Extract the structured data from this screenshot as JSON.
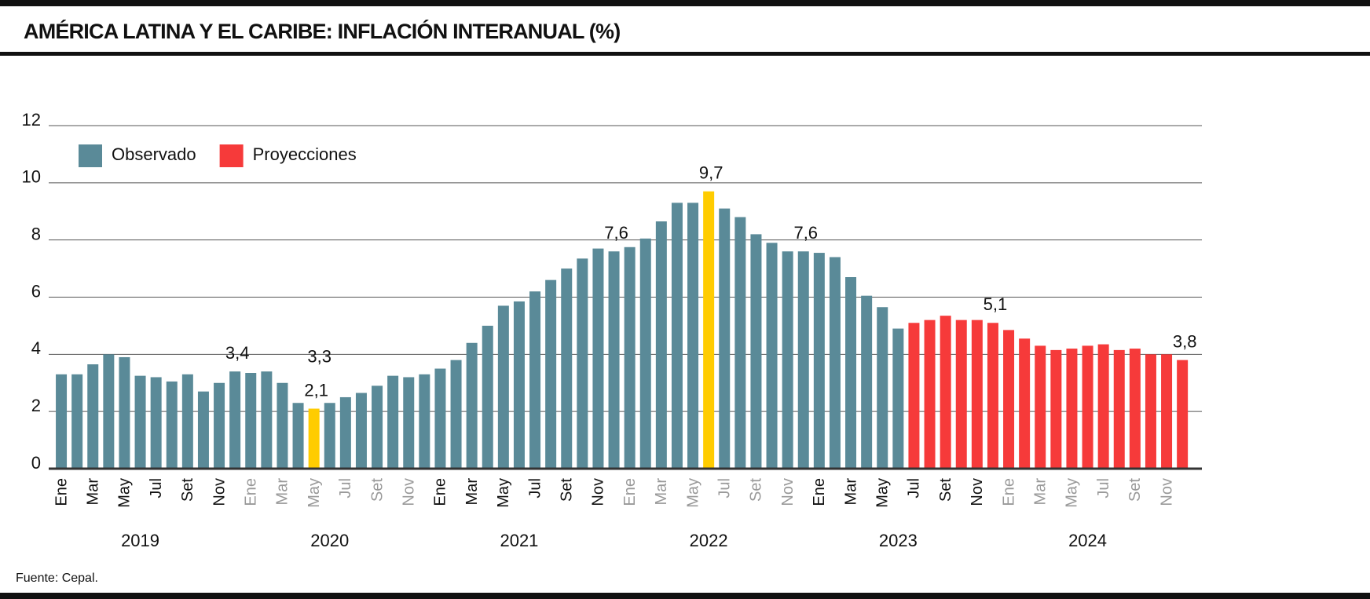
{
  "chart_data": {
    "type": "bar",
    "title": "AMÉRICA LATINA Y EL CARIBE: INFLACIÓN INTERANUAL (%)",
    "source": "Fuente: Cepal.",
    "categories": [
      "Ene",
      null,
      "Mar",
      null,
      "May",
      null,
      "Jul",
      null,
      "Set",
      null,
      "Nov",
      null,
      "Ene",
      null,
      "Mar",
      null,
      "May",
      null,
      "Jul",
      null,
      "Set",
      null,
      "Nov",
      null,
      "Ene",
      null,
      "Mar",
      null,
      "May",
      null,
      "Jul",
      null,
      "Set",
      null,
      "Nov",
      null,
      "Ene",
      null,
      "Mar",
      null,
      "May",
      null,
      "Jul",
      null,
      "Set",
      null,
      "Nov",
      null,
      "Ene",
      null,
      "Mar",
      null,
      "May",
      null,
      "Jul",
      null,
      "Set",
      null,
      "Nov",
      null,
      "Ene",
      null,
      "Mar",
      null,
      "May",
      null,
      "Jul",
      null,
      "Set",
      null,
      "Nov",
      null
    ],
    "years": [
      "2019",
      "2020",
      "2021",
      "2022",
      "2023",
      "2024"
    ],
    "series": [
      {
        "name": "Observado",
        "color": "#5a8a98",
        "values": [
          3.3,
          3.3,
          3.65,
          4.0,
          3.9,
          3.25,
          3.2,
          3.05,
          3.3,
          2.7,
          3.0,
          3.4,
          3.35,
          3.4,
          3.0,
          2.3,
          2.1,
          2.3,
          2.5,
          2.65,
          2.9,
          3.25,
          3.2,
          3.3,
          3.5,
          3.8,
          4.4,
          5.0,
          5.7,
          5.85,
          6.2,
          6.6,
          7.0,
          7.35,
          7.7,
          7.6,
          7.75,
          8.05,
          8.65,
          9.3,
          9.3,
          9.7,
          9.1,
          8.8,
          8.2,
          7.9,
          7.6,
          7.6,
          7.55,
          7.4,
          6.7,
          6.05,
          5.65,
          4.9,
          null,
          null,
          null,
          null,
          null,
          null,
          null,
          null,
          null,
          null,
          null,
          null,
          null,
          null,
          null,
          null,
          null,
          null
        ],
        "value_labels": [
          null,
          null,
          null,
          null,
          null,
          null,
          null,
          null,
          null,
          null,
          null,
          "3,4",
          null,
          null,
          null,
          null,
          "2,1",
          null,
          null,
          null,
          null,
          null,
          null,
          null,
          null,
          null,
          null,
          null,
          null,
          null,
          null,
          null,
          null,
          null,
          null,
          "7,6",
          null,
          null,
          null,
          null,
          null,
          "9,7",
          null,
          null,
          null,
          null,
          null,
          "7,6",
          null,
          null,
          null,
          null,
          null,
          null,
          null,
          null,
          null,
          null,
          null,
          null,
          null,
          null,
          null,
          null,
          null,
          null,
          null,
          null,
          null,
          null,
          null,
          null
        ]
      },
      {
        "name": "Proyecciones",
        "color": "#f63a3a",
        "values": [
          null,
          null,
          null,
          null,
          null,
          null,
          null,
          null,
          null,
          null,
          null,
          null,
          null,
          null,
          null,
          null,
          null,
          null,
          null,
          null,
          null,
          null,
          null,
          null,
          null,
          null,
          null,
          null,
          null,
          null,
          null,
          null,
          null,
          null,
          null,
          null,
          null,
          null,
          null,
          null,
          null,
          null,
          null,
          null,
          null,
          null,
          null,
          null,
          null,
          null,
          null,
          null,
          null,
          null,
          5.1,
          5.2,
          5.35,
          5.2,
          5.2,
          5.1,
          4.85,
          4.55,
          4.3,
          4.15,
          4.2,
          4.3,
          4.35,
          4.15,
          4.2,
          4.0,
          4.0,
          3.8
        ],
        "value_labels": [
          null,
          null,
          null,
          null,
          null,
          null,
          null,
          null,
          null,
          null,
          null,
          null,
          null,
          null,
          null,
          null,
          null,
          null,
          null,
          null,
          null,
          null,
          null,
          null,
          null,
          null,
          null,
          null,
          null,
          null,
          null,
          null,
          null,
          null,
          null,
          null,
          null,
          null,
          null,
          null,
          null,
          null,
          null,
          null,
          null,
          null,
          null,
          null,
          null,
          null,
          null,
          null,
          null,
          null,
          null,
          null,
          null,
          null,
          null,
          "5,1",
          null,
          null,
          null,
          null,
          null,
          null,
          null,
          null,
          null,
          null,
          null,
          "3,8"
        ]
      }
    ],
    "highlight_indices": [
      16,
      41
    ],
    "highlight_color": "#ffcc00",
    "annotations": [
      "3,3"
    ],
    "ylim": [
      0,
      12
    ],
    "yticks": [
      0,
      2,
      4,
      6,
      8,
      10,
      12
    ],
    "grid": true,
    "legend": "top-left"
  }
}
